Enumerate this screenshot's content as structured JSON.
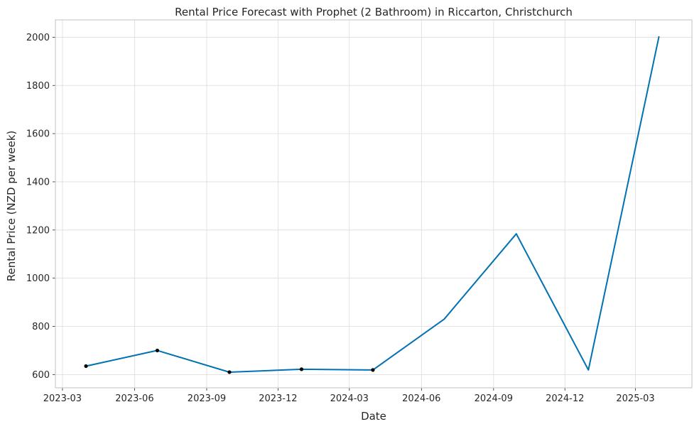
{
  "chart_data": {
    "type": "line",
    "title": "Rental Price Forecast with Prophet (2 Bathroom) in Riccarton, Christchurch",
    "xlabel": "Date",
    "ylabel": "Rental Price (NZD per week)",
    "x_ticks": [
      "2023-03",
      "2023-06",
      "2023-09",
      "2023-12",
      "2024-03",
      "2024-06",
      "2024-09",
      "2024-12",
      "2025-03"
    ],
    "y_ticks": [
      600,
      800,
      1000,
      1200,
      1400,
      1600,
      1800,
      2000
    ],
    "xlim": [
      "2023-02-20",
      "2025-05-12"
    ],
    "ylim": [
      545,
      2072
    ],
    "grid": true,
    "colors": {
      "line": "#0072b2",
      "points": "#000000"
    },
    "series": [
      {
        "kind": "forecast",
        "x": [
          "2023-03-31",
          "2023-06-30",
          "2023-09-30",
          "2023-12-31",
          "2024-03-31",
          "2024-06-30",
          "2024-09-30",
          "2024-12-31",
          "2025-03-31"
        ],
        "y": [
          635,
          700,
          610,
          622,
          619,
          830,
          1184,
          619,
          2004
        ]
      },
      {
        "kind": "observed",
        "x": [
          "2023-03-31",
          "2023-06-30",
          "2023-09-30",
          "2023-12-31",
          "2024-03-31"
        ],
        "y": [
          635,
          700,
          610,
          622,
          619
        ]
      }
    ]
  }
}
